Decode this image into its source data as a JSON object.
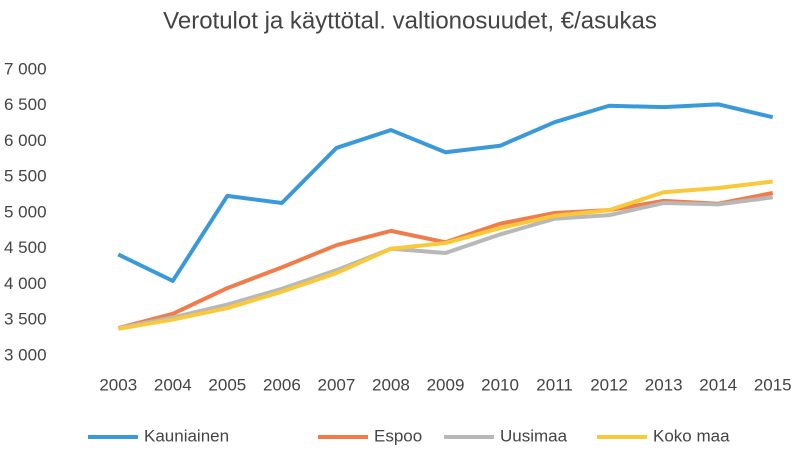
{
  "chart_data": {
    "type": "line",
    "title": "Verotulot ja käyttötal. valtionosuudet, €/asukas",
    "categories": [
      "2003",
      "2004",
      "2005",
      "2006",
      "2007",
      "2008",
      "2009",
      "2010",
      "2011",
      "2012",
      "2013",
      "2014",
      "2015"
    ],
    "series": [
      {
        "name": "Kauniainen",
        "color": "#3a9ad9",
        "values": [
          4420,
          4050,
          5240,
          5140,
          5910,
          6160,
          5850,
          5940,
          6270,
          6500,
          6480,
          6520,
          6340
        ]
      },
      {
        "name": "Espoo",
        "color": "#ef7c4a",
        "values": [
          3390,
          3590,
          3950,
          4240,
          4550,
          4750,
          4590,
          4850,
          5000,
          5040,
          5170,
          5130,
          5280
        ]
      },
      {
        "name": "Uusimaa",
        "color": "#b8b8b8",
        "values": [
          3390,
          3540,
          3720,
          3940,
          4200,
          4500,
          4440,
          4700,
          4920,
          4970,
          5140,
          5120,
          5220
        ]
      },
      {
        "name": "Koko maa",
        "color": "#f9c93a",
        "values": [
          3380,
          3510,
          3670,
          3900,
          4160,
          4500,
          4580,
          4790,
          4960,
          5040,
          5290,
          5350,
          5440
        ]
      }
    ],
    "ylim": [
      3000,
      7000
    ],
    "yticks": [
      {
        "value": 3000,
        "label": "3 000"
      },
      {
        "value": 3500,
        "label": "3 500"
      },
      {
        "value": 4000,
        "label": "4 000"
      },
      {
        "value": 4500,
        "label": "4 500"
      },
      {
        "value": 5000,
        "label": "5 000"
      },
      {
        "value": 5500,
        "label": "5 500"
      },
      {
        "value": 6000,
        "label": "6 000"
      },
      {
        "value": 6500,
        "label": "6 500"
      },
      {
        "value": 7000,
        "label": "7 000"
      }
    ],
    "grid": false,
    "legend": "bottom"
  }
}
